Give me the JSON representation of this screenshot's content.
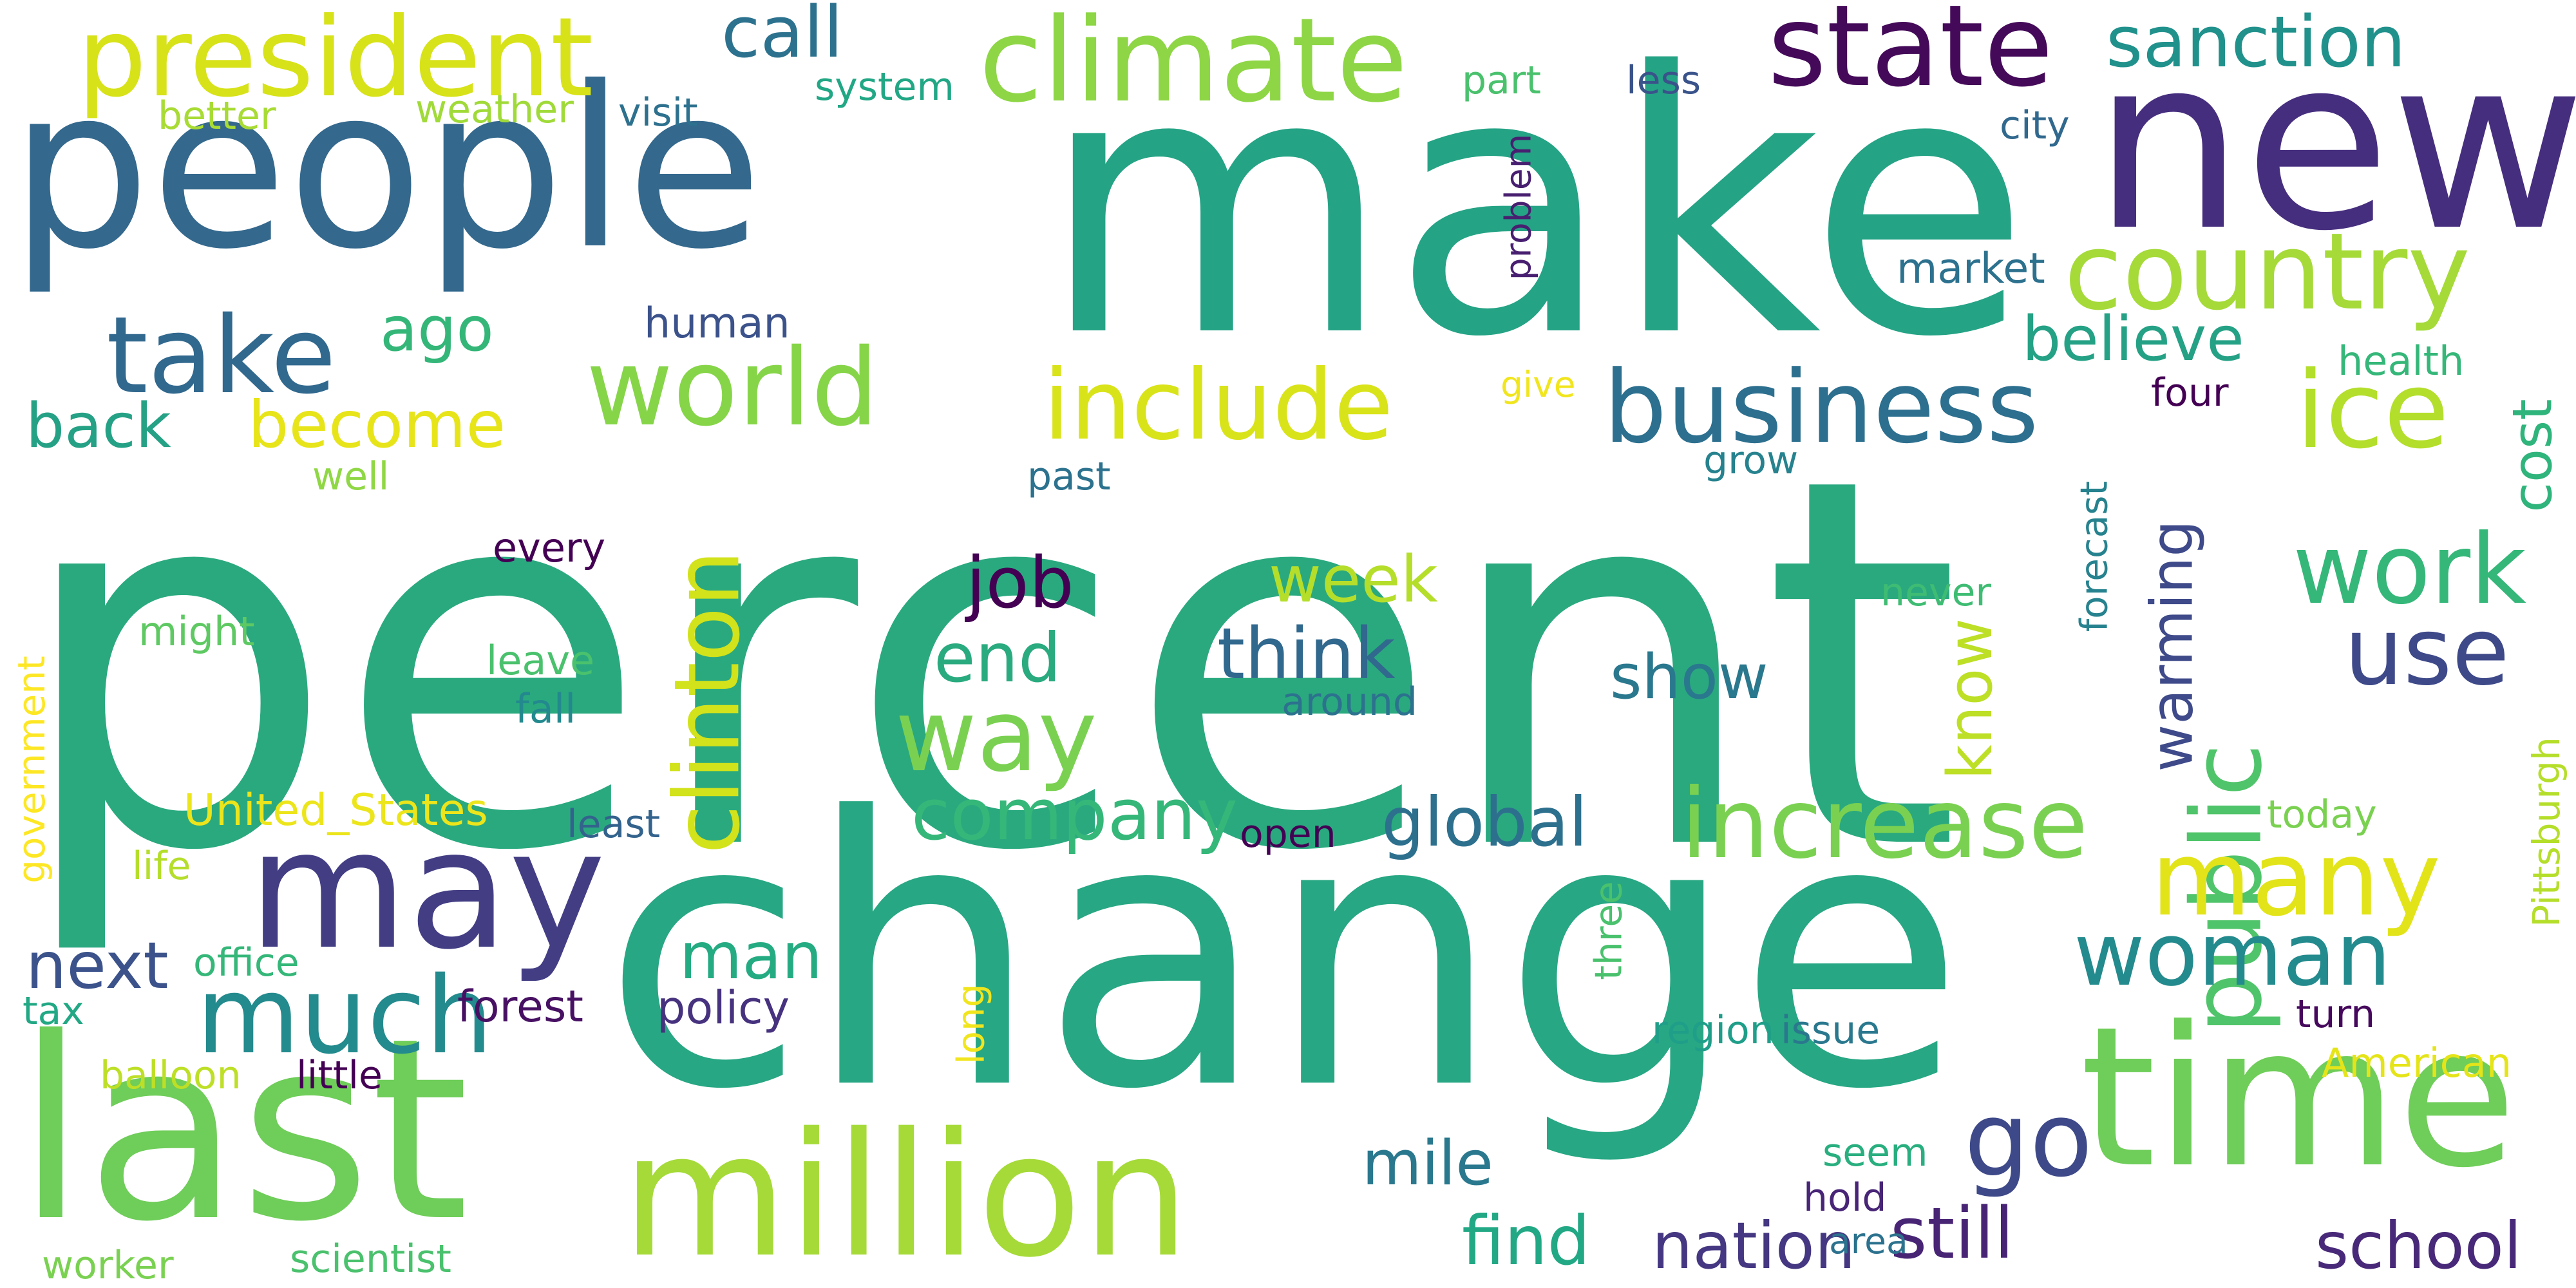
{
  "words": [
    {
      "text": "percent",
      "color": "#2aa97f"
    },
    {
      "text": "make",
      "color": "#25a385"
    },
    {
      "text": "change",
      "color": "#27a783"
    },
    {
      "text": "people",
      "color": "#34688d"
    },
    {
      "text": "new",
      "color": "#462e7e"
    },
    {
      "text": "last",
      "color": "#6fcd59"
    },
    {
      "text": "million",
      "color": "#a5da39"
    },
    {
      "text": "time",
      "color": "#6fcd59"
    },
    {
      "text": "may",
      "color": "#433e84"
    },
    {
      "text": "president",
      "color": "#d7e219"
    },
    {
      "text": "climate",
      "color": "#8ed645"
    },
    {
      "text": "state",
      "color": "#440a59"
    },
    {
      "text": "country",
      "color": "#a5da39"
    },
    {
      "text": "world",
      "color": "#86d549"
    },
    {
      "text": "include",
      "color": "#d9e319"
    },
    {
      "text": "business",
      "color": "#2c6f8e"
    },
    {
      "text": "take",
      "color": "#31688e"
    },
    {
      "text": "much",
      "color": "#238a8d"
    },
    {
      "text": "increase",
      "color": "#7ad151"
    },
    {
      "text": "clinton",
      "color": "#d2e21b"
    },
    {
      "text": "public",
      "color": "#50c46a"
    },
    {
      "text": "way",
      "color": "#7ad151"
    },
    {
      "text": "woman",
      "color": "#238a8d"
    },
    {
      "text": "many",
      "color": "#e2e419"
    },
    {
      "text": "work",
      "color": "#35b779"
    },
    {
      "text": "ice",
      "color": "#b4de2c"
    },
    {
      "text": "go",
      "color": "#3e4989"
    },
    {
      "text": "use",
      "color": "#3e4989"
    },
    {
      "text": "sanction",
      "color": "#21918c"
    },
    {
      "text": "call",
      "color": "#2c728e"
    },
    {
      "text": "company",
      "color": "#35b779"
    },
    {
      "text": "global",
      "color": "#2d708e"
    },
    {
      "text": "become",
      "color": "#e7e419"
    },
    {
      "text": "think",
      "color": "#31688e"
    },
    {
      "text": "back",
      "color": "#25a185"
    },
    {
      "text": "believe",
      "color": "#25a185"
    },
    {
      "text": "still",
      "color": "#482475"
    },
    {
      "text": "nation",
      "color": "#453781"
    },
    {
      "text": "find",
      "color": "#22a884"
    },
    {
      "text": "job",
      "color": "#440154"
    },
    {
      "text": "week",
      "color": "#b5de2b"
    },
    {
      "text": "end",
      "color": "#2aaa7f"
    },
    {
      "text": "show",
      "color": "#2a788e"
    },
    {
      "text": "man",
      "color": "#25ab82"
    },
    {
      "text": "next",
      "color": "#3b528b"
    },
    {
      "text": "mile",
      "color": "#2a788e"
    },
    {
      "text": "school",
      "color": "#482878"
    },
    {
      "text": "know",
      "color": "#bddf26"
    },
    {
      "text": "warming",
      "color": "#3e4a89"
    },
    {
      "text": "cost",
      "color": "#2fb47c"
    },
    {
      "text": "ago",
      "color": "#34b679"
    },
    {
      "text": "United_States",
      "color": "#ece51b"
    },
    {
      "text": "policy",
      "color": "#46327e"
    },
    {
      "text": "forest",
      "color": "#471063"
    },
    {
      "text": "human",
      "color": "#3b528b"
    },
    {
      "text": "market",
      "color": "#2c718e"
    },
    {
      "text": "system",
      "color": "#22a785"
    },
    {
      "text": "weather",
      "color": "#a0da39"
    },
    {
      "text": "better",
      "color": "#a8db34"
    },
    {
      "text": "visit",
      "color": "#2d718e"
    },
    {
      "text": "part",
      "color": "#4ac16d"
    },
    {
      "text": "less",
      "color": "#3a538b"
    },
    {
      "text": "city",
      "color": "#31688e"
    },
    {
      "text": "health",
      "color": "#35b779"
    },
    {
      "text": "four",
      "color": "#440154"
    },
    {
      "text": "give",
      "color": "#f1e51d"
    },
    {
      "text": "well",
      "color": "#8fd744"
    },
    {
      "text": "past",
      "color": "#2c728e"
    },
    {
      "text": "grow",
      "color": "#26828e"
    },
    {
      "text": "every",
      "color": "#440154"
    },
    {
      "text": "might",
      "color": "#5ec962"
    },
    {
      "text": "leave",
      "color": "#4ac16d"
    },
    {
      "text": "fall",
      "color": "#23898e"
    },
    {
      "text": "around",
      "color": "#2c728e"
    },
    {
      "text": "never",
      "color": "#3fbc73"
    },
    {
      "text": "today",
      "color": "#7ad151"
    },
    {
      "text": "least",
      "color": "#33638d"
    },
    {
      "text": "open",
      "color": "#440154"
    },
    {
      "text": "life",
      "color": "#b5de2b"
    },
    {
      "text": "office",
      "color": "#35b779"
    },
    {
      "text": "tax",
      "color": "#22a884"
    },
    {
      "text": "balloon",
      "color": "#bddf26"
    },
    {
      "text": "little",
      "color": "#440154"
    },
    {
      "text": "region",
      "color": "#1f9e89"
    },
    {
      "text": "issue",
      "color": "#2a788e"
    },
    {
      "text": "turn",
      "color": "#46085c"
    },
    {
      "text": "American",
      "color": "#e5e419"
    },
    {
      "text": "seem",
      "color": "#29af7f"
    },
    {
      "text": "hold",
      "color": "#482576"
    },
    {
      "text": "area",
      "color": "#2c728e"
    },
    {
      "text": "worker",
      "color": "#7ad151"
    },
    {
      "text": "scientist",
      "color": "#4ac16d"
    },
    {
      "text": "problem",
      "color": "#481f70"
    },
    {
      "text": "forecast",
      "color": "#26828e"
    },
    {
      "text": "Pittsburgh",
      "color": "#b5de2b"
    },
    {
      "text": "government",
      "color": "#fde725"
    },
    {
      "text": "three",
      "color": "#4ac16d"
    },
    {
      "text": "long",
      "color": "#f1e51d"
    }
  ]
}
